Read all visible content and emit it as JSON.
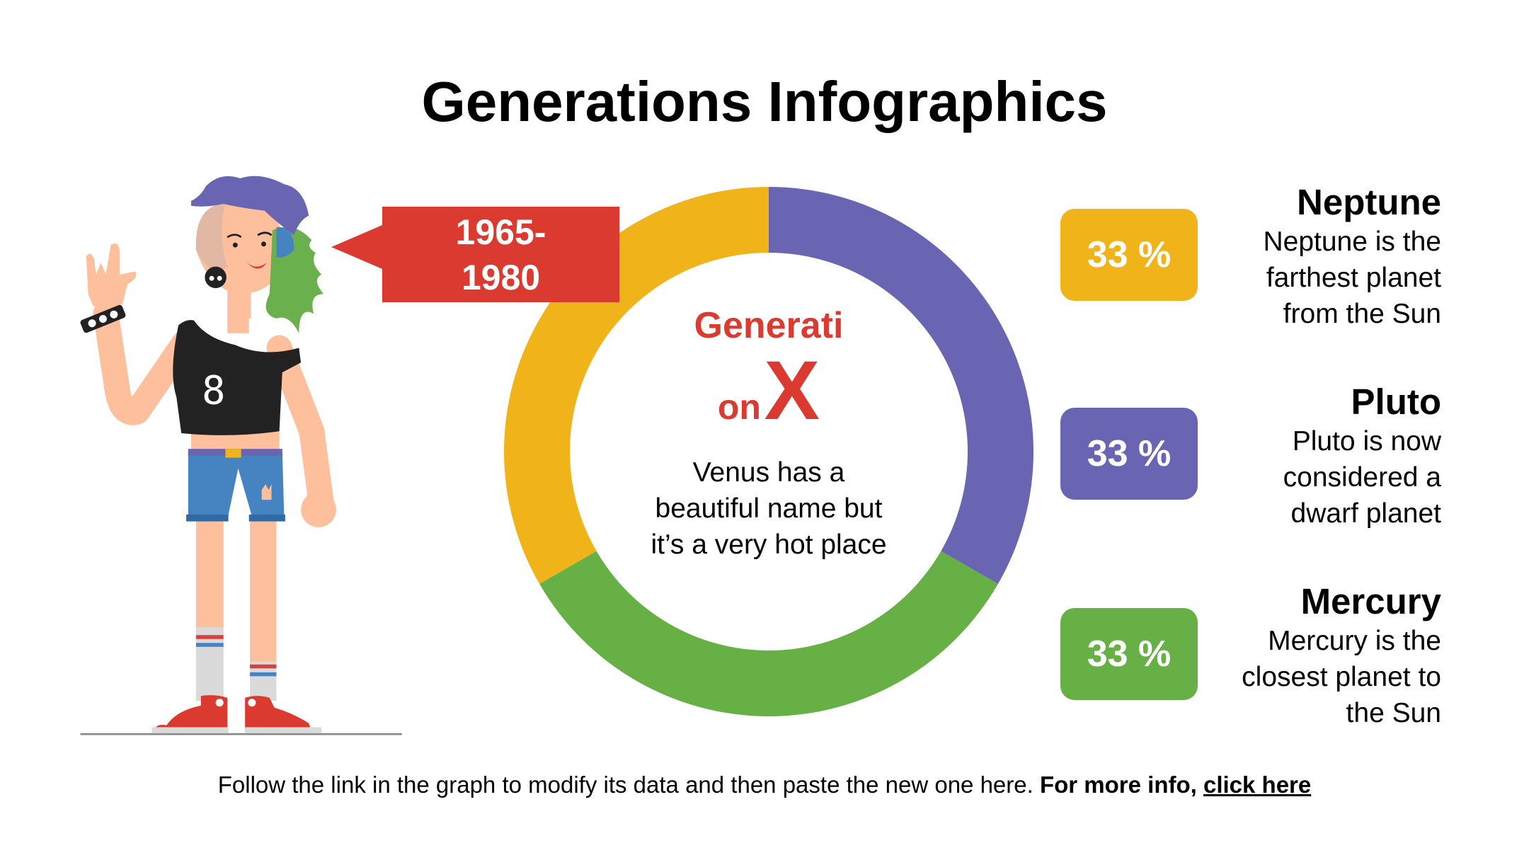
{
  "title": "Generations Infographics",
  "callout": {
    "line1": "1965-",
    "line2": "1980",
    "color": "#db3a31"
  },
  "center": {
    "heading_line1": "Generati",
    "heading_on": "on",
    "heading_x": "X",
    "body_line1": "Venus has a",
    "body_line2": "beautiful name but",
    "body_line3": "it’s a very hot place"
  },
  "chart_data": {
    "type": "pie",
    "variant": "donut",
    "categories": [
      "Neptune",
      "Pluto",
      "Mercury"
    ],
    "values": [
      33,
      33,
      33
    ],
    "colors": [
      "#f0b41a",
      "#6a65b3",
      "#66b046"
    ],
    "segment_order_clockwise_from_top": [
      "Pluto",
      "Mercury",
      "Neptune"
    ]
  },
  "items": [
    {
      "percent": "33 %",
      "title": "Neptune",
      "lines": [
        "Neptune is the",
        "farthest planet",
        "from the Sun"
      ],
      "color": "#f0b41a"
    },
    {
      "percent": "33 %",
      "title": "Pluto",
      "lines": [
        "Pluto is now",
        "considered a",
        "dwarf planet"
      ],
      "color": "#6a65b3"
    },
    {
      "percent": "33 %",
      "title": "Mercury",
      "lines": [
        "Mercury is the",
        "closest planet to",
        "the Sun"
      ],
      "color": "#66b046"
    }
  ],
  "footer": {
    "text": "Follow the link in the graph to modify its data and then paste the new one here. ",
    "bold": "For more info, ",
    "link": "click here"
  }
}
